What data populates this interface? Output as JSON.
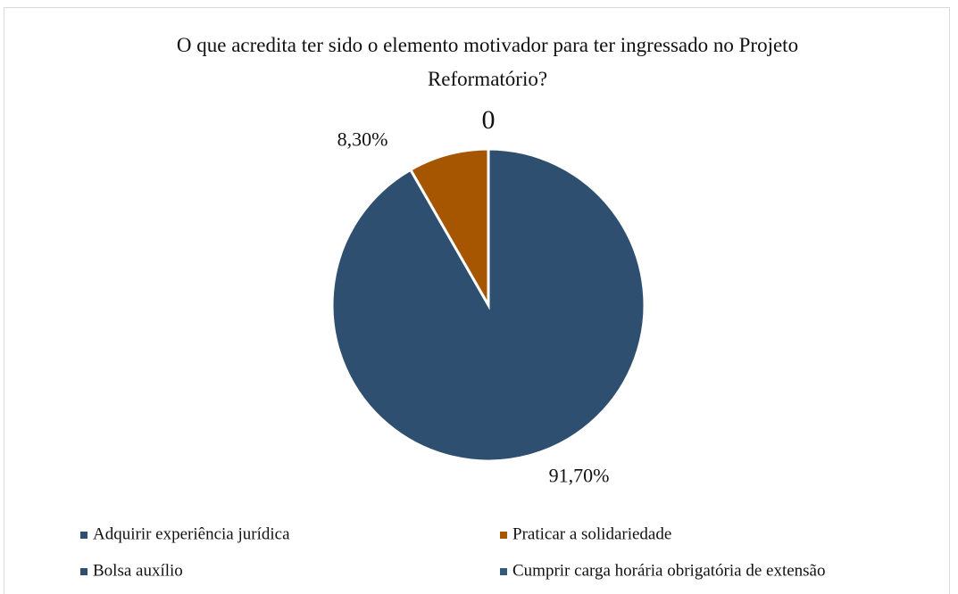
{
  "chart_data": {
    "type": "pie",
    "title": "O que acredita ter sido o elemento motivador para ter ingressado no Projeto Reformatório?",
    "categories": [
      "Adquirir experiência jurídica",
      "Praticar a solidariedade",
      "Bolsa auxílio",
      "Cumprir carga horária obrigatória de extensão"
    ],
    "values": [
      91.7,
      8.3,
      0,
      0
    ],
    "value_labels": [
      "91,70%",
      "8,30%",
      "0",
      null
    ],
    "colors": [
      "#2f4f70",
      "#a65500",
      "#2f4f70",
      "#35597d"
    ],
    "legend": "bottom"
  }
}
